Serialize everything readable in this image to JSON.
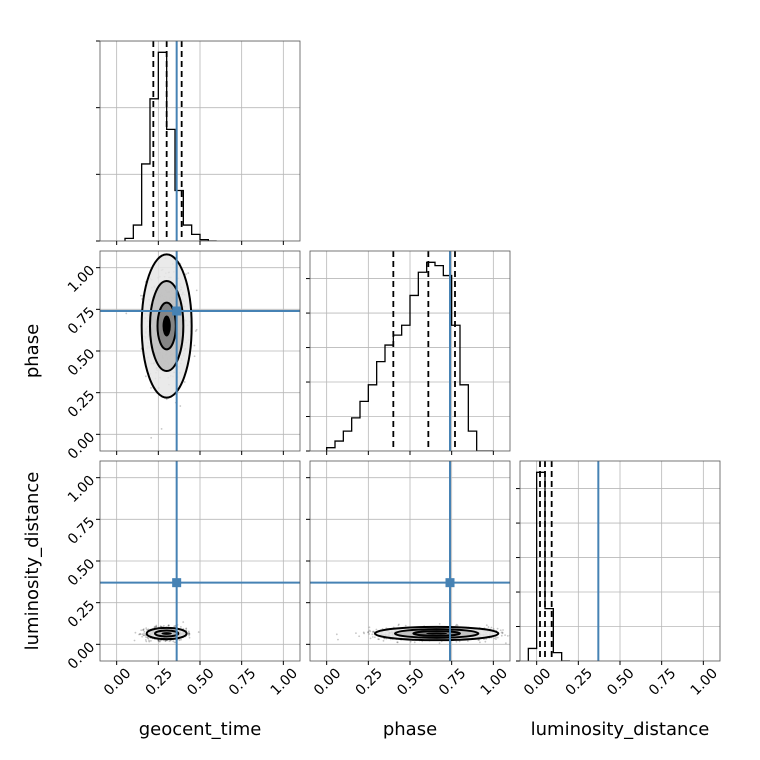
{
  "chart_data": {
    "type": "scatter",
    "title": "",
    "parameters": [
      "geocent_time",
      "phase",
      "luminosity_distance"
    ],
    "xlabels": [
      "geocent_time",
      "phase",
      "luminosity_distance"
    ],
    "ylabels": [
      "",
      "phase",
      "luminosity_distance"
    ],
    "axis_range": [
      -0.1,
      1.1
    ],
    "ticks": [
      0.0,
      0.25,
      0.5,
      0.75,
      1.0
    ],
    "tick_labels": [
      "0.00",
      "0.25",
      "0.50",
      "0.75",
      "1.00"
    ],
    "grid": true,
    "truths": {
      "geocent_time": 0.36,
      "phase": 0.74,
      "luminosity_distance": 0.37
    },
    "truth_color": "#4682b4",
    "histograms": {
      "geocent_time": {
        "bin_edges": [
          0.05,
          0.1,
          0.15,
          0.2,
          0.25,
          0.3,
          0.35,
          0.4,
          0.45,
          0.5,
          0.55,
          0.6
        ],
        "counts": [
          2,
          12,
          58,
          107,
          142,
          84,
          38,
          12,
          5,
          1,
          0
        ],
        "quantiles": [
          0.22,
          0.3,
          0.39
        ]
      },
      "phase": {
        "bin_edges": [
          0.0,
          0.05,
          0.1,
          0.15,
          0.2,
          0.25,
          0.3,
          0.35,
          0.4,
          0.45,
          0.5,
          0.55,
          0.6,
          0.65,
          0.7,
          0.75,
          0.8,
          0.85,
          0.9,
          0.95,
          1.0
        ],
        "counts": [
          1,
          3,
          6,
          10,
          15,
          20,
          27,
          32,
          35,
          38,
          47,
          54,
          57,
          56,
          53,
          38,
          20,
          6,
          0,
          0
        ],
        "quantiles": [
          0.4,
          0.61,
          0.77
        ]
      },
      "luminosity_distance": {
        "bin_edges": [
          -0.05,
          0.0,
          0.05,
          0.1,
          0.15,
          0.2
        ],
        "counts": [
          6,
          90,
          25,
          4,
          0
        ],
        "quantiles": [
          0.02,
          0.05,
          0.09
        ]
      }
    },
    "density_2d": [
      {
        "x": "geocent_time",
        "y": "phase",
        "center": [
          0.3,
          0.65
        ],
        "spread": [
          0.06,
          0.16
        ],
        "levels": [
          [
            0.055,
            0.14
          ],
          [
            0.1,
            0.27
          ],
          [
            0.15,
            0.43
          ]
        ]
      },
      {
        "x": "geocent_time",
        "y": "luminosity_distance",
        "center": [
          0.3,
          0.065
        ],
        "spread": [
          0.06,
          0.02
        ],
        "levels": [
          [
            0.07,
            0.018
          ],
          [
            0.12,
            0.034
          ]
        ]
      },
      {
        "x": "phase",
        "y": "luminosity_distance",
        "center": [
          0.66,
          0.065
        ],
        "spread": [
          0.2,
          0.02
        ],
        "levels": [
          [
            0.14,
            0.014
          ],
          [
            0.25,
            0.026
          ],
          [
            0.37,
            0.04
          ]
        ]
      }
    ]
  }
}
